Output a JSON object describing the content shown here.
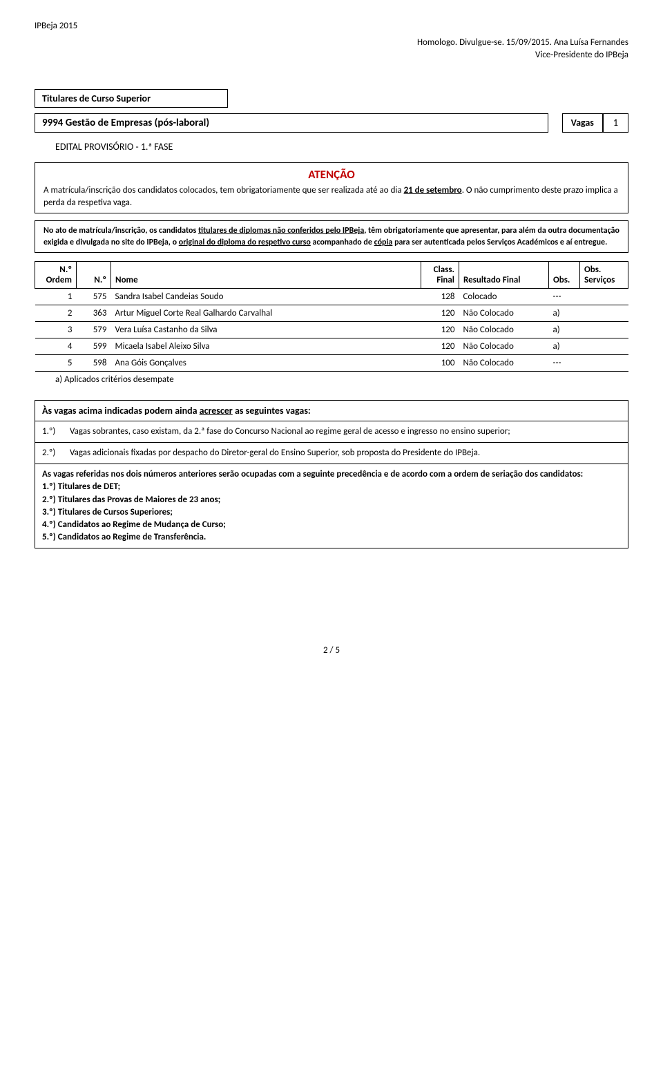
{
  "header": {
    "left": "IPBeja 2015",
    "right_line1": "Homologo. Divulgue-se. 15/09/2015. Ana Luísa Fernandes",
    "right_line2": "Vice-Presidente do IPBeja"
  },
  "title_box": "Titulares de Curso Superior",
  "course": {
    "code_name": "9994  Gestão de Empresas (pós-laboral)",
    "vagas_label": "Vagas",
    "vagas_value": "1"
  },
  "edital": "EDITAL PROVISÓRIO - 1.ª FASE",
  "atencao": {
    "title": "ATENÇÃO",
    "p1_a": "A matrícula/inscrição dos candidatos colocados, tem obrigatoriamente que ser realizada até ao dia ",
    "p1_u": "21 de setembro",
    "p1_b": ". O não cumprimento deste prazo implica a perda da respetiva vaga."
  },
  "note2": {
    "a": "No ato de matrícula/inscrição, os candidatos ",
    "u1": "titulares de diplomas não conferidos pelo IPBeja",
    "b": ", têm obrigatoriamente que apresentar, para além da outra documentação exigida e divulgada no site do IPBeja, o ",
    "u2": "original do diploma do respetivo curso",
    "c": " acompanhado de ",
    "u3": "cópia",
    "d": " para ser autenticada pelos Serviços Académicos e aí entregue."
  },
  "table": {
    "headers": {
      "ordem": "N.º Ordem",
      "num": "N.º",
      "nome": "Nome",
      "class": "Class. Final",
      "resultado": "Resultado Final",
      "obs": "Obs.",
      "servicos": "Obs. Serviços"
    },
    "rows": [
      {
        "ord": "1",
        "num": "575",
        "nome": "Sandra Isabel Candeias Soudo",
        "cls": "128",
        "res": "Colocado",
        "obs": "---",
        "srv": ""
      },
      {
        "ord": "2",
        "num": "363",
        "nome": "Artur Miguel Corte Real Galhardo Carvalhal",
        "cls": "120",
        "res": "Não Colocado",
        "obs": "a)",
        "srv": ""
      },
      {
        "ord": "3",
        "num": "579",
        "nome": "Vera Luísa Castanho da Silva",
        "cls": "120",
        "res": "Não Colocado",
        "obs": "a)",
        "srv": ""
      },
      {
        "ord": "4",
        "num": "599",
        "nome": "Micaela Isabel Aleixo Silva",
        "cls": "120",
        "res": "Não Colocado",
        "obs": "a)",
        "srv": ""
      },
      {
        "ord": "5",
        "num": "598",
        "nome": "Ana Góis Gonçalves",
        "cls": "100",
        "res": "Não Colocado",
        "obs": "---",
        "srv": ""
      }
    ],
    "footnote": "a) Aplicados critérios desempate"
  },
  "extra": {
    "title_a": "Às vagas acima indicadas  podem ainda ",
    "title_u": "acrescer",
    "title_b": " as seguintes vagas:",
    "items": [
      {
        "ord": "1.º)",
        "text": "Vagas sobrantes, caso existam, da 2.ª fase do Concurso Nacional ao regime geral de acesso e ingresso no ensino superior;"
      },
      {
        "ord": "2.º)",
        "text": "Vagas adicionais fixadas por despacho do Diretor-geral do Ensino Superior, sob proposta do Presidente do IPBeja."
      }
    ],
    "conclusion_lead": "As vagas referidas nos dois números anteriores serão ocupadas com a seguinte precedência e de acordo com a ordem de seriação dos candidatos:",
    "conclusion_items": [
      "1.º) Titulares de DET;",
      "2.º) Titulares das Provas de Maiores de 23 anos;",
      "3.º) Titulares de Cursos Superiores;",
      "4.º) Candidatos ao Regime de Mudança de Curso;",
      "5.º) Candidatos ao Regime de Transferência."
    ]
  },
  "footer": "2 / 5"
}
